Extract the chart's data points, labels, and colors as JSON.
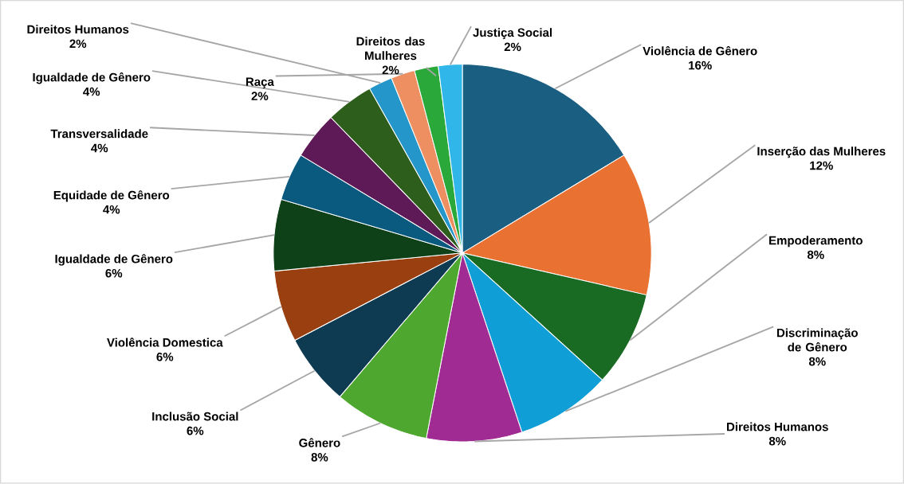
{
  "chart_data": {
    "type": "pie",
    "categories": [
      "Violência de Gênero",
      "Inserção das Mulheres",
      "Empoderamento",
      "Discriminação de Gênero",
      "Direitos Humanos",
      "Gênero",
      "Inclusão Social",
      "Violência Domestica",
      "Igualdade de Gênero",
      "Equidade de Gênero",
      "Transversalidade",
      "Igualdade de Gênero",
      "Direitos Humanos",
      "Raça",
      "Direitos das Mulheres",
      "Justiça Social"
    ],
    "values": [
      16,
      12,
      8,
      8,
      8,
      8,
      6,
      6,
      6,
      4,
      4,
      4,
      2,
      2,
      2,
      2
    ],
    "value_labels": [
      "16%",
      "12%",
      "8%",
      "8%",
      "8%",
      "8%",
      "6%",
      "6%",
      "6%",
      "4%",
      "4%",
      "4%",
      "2%",
      "2%",
      "2%",
      "2%"
    ],
    "colors": [
      "#1a5f82",
      "#e97132",
      "#196b24",
      "#0f9ed5",
      "#a02b93",
      "#4ea72e",
      "#0e3a52",
      "#9a3f10",
      "#0f4118",
      "#0a5a80",
      "#5e1a57",
      "#2e5e1c",
      "#2596c9",
      "#ed8f60",
      "#2aa83a",
      "#31b6ea"
    ],
    "legend": false
  }
}
